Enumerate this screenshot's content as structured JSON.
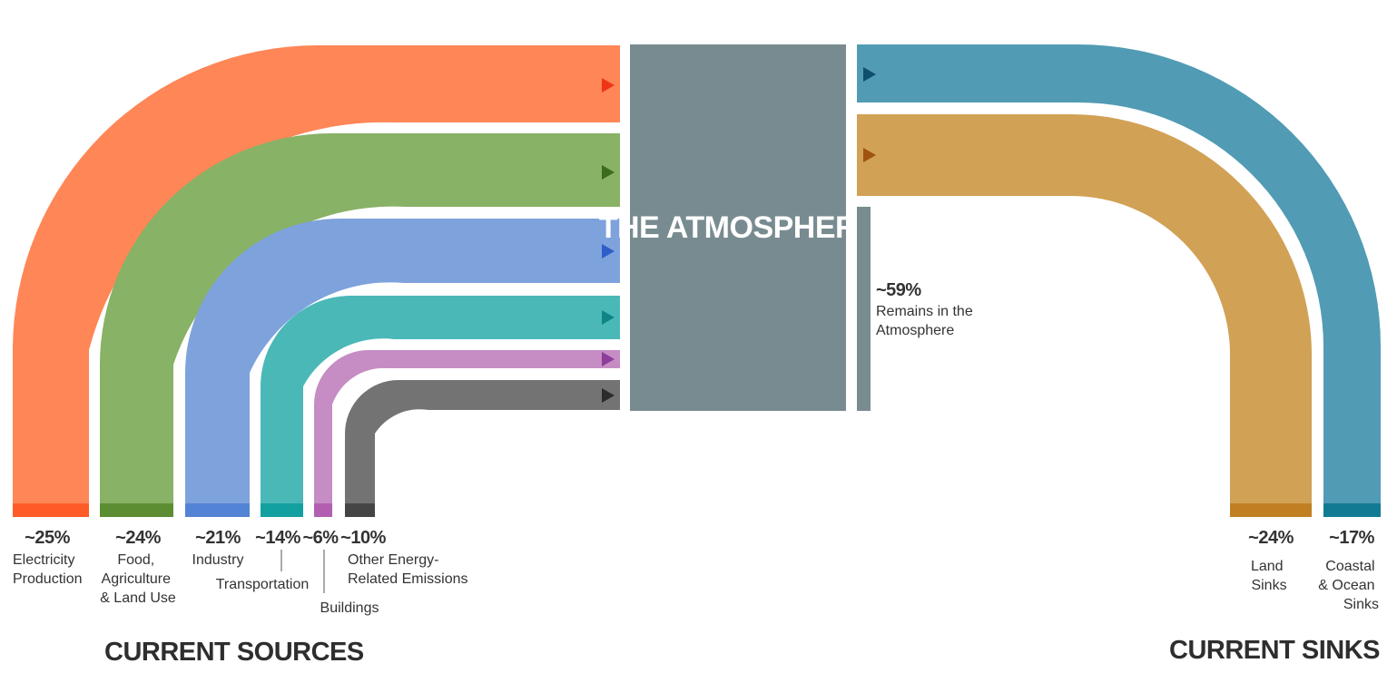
{
  "title": "THE ATMOSPHERE",
  "sources_heading": "CURRENT SOURCES",
  "sinks_heading": "CURRENT SINKS",
  "colors": {
    "atmosphere": "#788b91",
    "remains_bar": "#788b91"
  },
  "sources": [
    {
      "percent": "~25%",
      "label_lines": [
        "Electricity",
        "Production"
      ],
      "share": 25,
      "color": "#ff8656",
      "accent": "#ff5b28",
      "arrow": "#ef3518"
    },
    {
      "percent": "~24%",
      "label_lines": [
        "Food,",
        "Agriculture",
        "& Land Use"
      ],
      "share": 24,
      "color": "#88b266",
      "accent": "#5c8d33",
      "arrow": "#3c6c1b"
    },
    {
      "percent": "~21%",
      "label_lines": [
        "Industry"
      ],
      "share": 21,
      "color": "#7ea2dc",
      "accent": "#5383d4",
      "arrow": "#2f5ec8"
    },
    {
      "percent": "~14%",
      "label_lines": [
        "Transportation"
      ],
      "share": 14,
      "color": "#4bb8b8",
      "accent": "#12a0a0",
      "arrow": "#0f8486"
    },
    {
      "percent": "~6%",
      "label_lines": [
        "Buildings"
      ],
      "share": 6,
      "color": "#c58dc4",
      "accent": "#b25fb2",
      "arrow": "#8d3e96"
    },
    {
      "percent": "~10%",
      "label_lines": [
        "Other Energy-",
        "Related Emissions"
      ],
      "share": 10,
      "color": "#737373",
      "accent": "#454545",
      "arrow": "#2b2b2b"
    }
  ],
  "remains": {
    "percent": "~59%",
    "label_lines": [
      "Remains in the",
      "Atmosphere"
    ],
    "share": 59
  },
  "sinks": [
    {
      "percent": "~17%",
      "label_lines": [
        "Coastal",
        "& Ocean",
        "Sinks"
      ],
      "share": 17,
      "color": "#519bb4",
      "accent": "#137a93",
      "arrow": "#0d4f6c"
    },
    {
      "percent": "~24%",
      "label_lines": [
        "Land",
        "Sinks"
      ],
      "share": 24,
      "color": "#d1a155",
      "accent": "#c07f22",
      "arrow": "#a0520f"
    }
  ]
}
